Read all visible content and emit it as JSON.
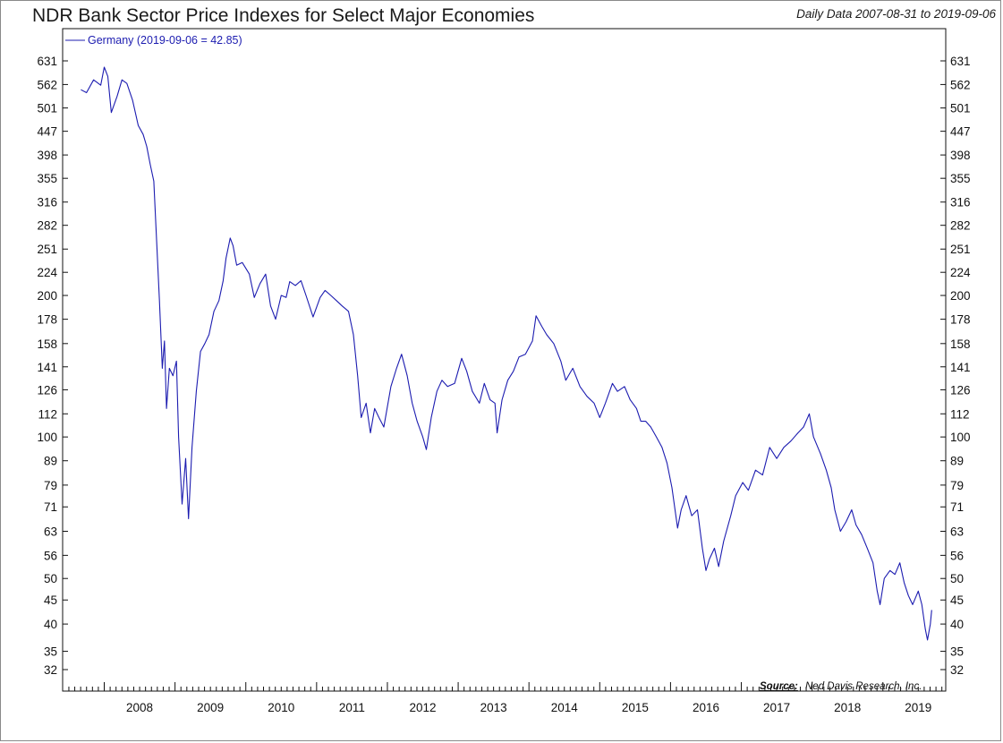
{
  "chart_data": {
    "type": "line",
    "title": "NDR Bank Sector Price Indexes for Select Major Economies",
    "subtitle": "Daily Data 2007-08-31 to 2019-09-06",
    "y_scale": "log",
    "ylim": [
      29.5,
      700
    ],
    "xlim": [
      2007.45,
      2019.85
    ],
    "y_ticks": [
      631,
      562,
      501,
      447,
      398,
      355,
      316,
      282,
      251,
      224,
      200,
      178,
      158,
      141,
      126,
      112,
      100,
      89,
      79,
      71,
      63,
      56,
      50,
      45,
      40,
      35,
      32
    ],
    "x_tick_years": [
      "2008",
      "2009",
      "2010",
      "2011",
      "2012",
      "2013",
      "2014",
      "2015",
      "2016",
      "2017",
      "2018",
      "2019"
    ],
    "legend": {
      "label": "Germany (2019-09-06 = 42.85)",
      "position": "top-left"
    },
    "source": {
      "label": "Source:",
      "text": "Ned Davis Research, Inc."
    },
    "series": [
      {
        "name": "Germany",
        "color": "#1c1cb0",
        "points": [
          [
            2007.67,
            548
          ],
          [
            2007.75,
            540
          ],
          [
            2007.85,
            575
          ],
          [
            2007.95,
            560
          ],
          [
            2008.0,
            612
          ],
          [
            2008.05,
            585
          ],
          [
            2008.1,
            490
          ],
          [
            2008.18,
            530
          ],
          [
            2008.25,
            575
          ],
          [
            2008.32,
            565
          ],
          [
            2008.4,
            520
          ],
          [
            2008.48,
            460
          ],
          [
            2008.55,
            440
          ],
          [
            2008.6,
            415
          ],
          [
            2008.65,
            380
          ],
          [
            2008.7,
            350
          ],
          [
            2008.74,
            260
          ],
          [
            2008.78,
            195
          ],
          [
            2008.82,
            140
          ],
          [
            2008.85,
            160
          ],
          [
            2008.88,
            115
          ],
          [
            2008.92,
            140
          ],
          [
            2008.97,
            135
          ],
          [
            2009.02,
            145
          ],
          [
            2009.05,
            100
          ],
          [
            2009.1,
            72
          ],
          [
            2009.15,
            90
          ],
          [
            2009.19,
            67
          ],
          [
            2009.24,
            95
          ],
          [
            2009.3,
            125
          ],
          [
            2009.36,
            152
          ],
          [
            2009.42,
            158
          ],
          [
            2009.48,
            165
          ],
          [
            2009.55,
            185
          ],
          [
            2009.62,
            195
          ],
          [
            2009.68,
            215
          ],
          [
            2009.72,
            240
          ],
          [
            2009.78,
            265
          ],
          [
            2009.82,
            255
          ],
          [
            2009.87,
            232
          ],
          [
            2009.95,
            235
          ],
          [
            2010.05,
            222
          ],
          [
            2010.12,
            198
          ],
          [
            2010.2,
            212
          ],
          [
            2010.28,
            222
          ],
          [
            2010.35,
            190
          ],
          [
            2010.42,
            178
          ],
          [
            2010.5,
            200
          ],
          [
            2010.57,
            198
          ],
          [
            2010.62,
            214
          ],
          [
            2010.7,
            210
          ],
          [
            2010.78,
            215
          ],
          [
            2010.85,
            200
          ],
          [
            2010.95,
            180
          ],
          [
            2011.05,
            198
          ],
          [
            2011.12,
            205
          ],
          [
            2011.2,
            200
          ],
          [
            2011.28,
            195
          ],
          [
            2011.36,
            190
          ],
          [
            2011.45,
            185
          ],
          [
            2011.52,
            165
          ],
          [
            2011.58,
            135
          ],
          [
            2011.63,
            110
          ],
          [
            2011.7,
            118
          ],
          [
            2011.76,
            102
          ],
          [
            2011.82,
            115
          ],
          [
            2011.88,
            110
          ],
          [
            2011.95,
            105
          ],
          [
            2012.05,
            128
          ],
          [
            2012.13,
            140
          ],
          [
            2012.2,
            150
          ],
          [
            2012.28,
            135
          ],
          [
            2012.35,
            118
          ],
          [
            2012.42,
            108
          ],
          [
            2012.5,
            100
          ],
          [
            2012.55,
            94
          ],
          [
            2012.62,
            110
          ],
          [
            2012.7,
            125
          ],
          [
            2012.77,
            132
          ],
          [
            2012.85,
            128
          ],
          [
            2012.95,
            130
          ],
          [
            2013.05,
            147
          ],
          [
            2013.12,
            138
          ],
          [
            2013.2,
            125
          ],
          [
            2013.3,
            118
          ],
          [
            2013.37,
            130
          ],
          [
            2013.45,
            120
          ],
          [
            2013.52,
            118
          ],
          [
            2013.55,
            102
          ],
          [
            2013.62,
            120
          ],
          [
            2013.7,
            132
          ],
          [
            2013.78,
            138
          ],
          [
            2013.86,
            148
          ],
          [
            2013.95,
            150
          ],
          [
            2014.05,
            160
          ],
          [
            2014.1,
            181
          ],
          [
            2014.18,
            172
          ],
          [
            2014.25,
            165
          ],
          [
            2014.35,
            158
          ],
          [
            2014.45,
            145
          ],
          [
            2014.52,
            132
          ],
          [
            2014.62,
            140
          ],
          [
            2014.72,
            128
          ],
          [
            2014.82,
            122
          ],
          [
            2014.92,
            118
          ],
          [
            2015.0,
            110
          ],
          [
            2015.08,
            118
          ],
          [
            2015.18,
            130
          ],
          [
            2015.25,
            125
          ],
          [
            2015.35,
            128
          ],
          [
            2015.43,
            120
          ],
          [
            2015.52,
            115
          ],
          [
            2015.58,
            108
          ],
          [
            2015.65,
            108
          ],
          [
            2015.72,
            105
          ],
          [
            2015.8,
            100
          ],
          [
            2015.88,
            95
          ],
          [
            2015.95,
            88
          ],
          [
            2016.02,
            78
          ],
          [
            2016.1,
            64
          ],
          [
            2016.15,
            70
          ],
          [
            2016.22,
            75
          ],
          [
            2016.3,
            68
          ],
          [
            2016.38,
            70
          ],
          [
            2016.45,
            58
          ],
          [
            2016.5,
            52
          ],
          [
            2016.55,
            55
          ],
          [
            2016.62,
            58
          ],
          [
            2016.68,
            53
          ],
          [
            2016.75,
            60
          ],
          [
            2016.85,
            68
          ],
          [
            2016.92,
            75
          ],
          [
            2017.02,
            80
          ],
          [
            2017.1,
            77
          ],
          [
            2017.2,
            85
          ],
          [
            2017.3,
            83
          ],
          [
            2017.4,
            95
          ],
          [
            2017.5,
            90
          ],
          [
            2017.6,
            95
          ],
          [
            2017.7,
            98
          ],
          [
            2017.8,
            102
          ],
          [
            2017.88,
            105
          ],
          [
            2017.96,
            112
          ],
          [
            2018.02,
            100
          ],
          [
            2018.12,
            92
          ],
          [
            2018.2,
            85
          ],
          [
            2018.27,
            78
          ],
          [
            2018.32,
            70
          ],
          [
            2018.4,
            63
          ],
          [
            2018.48,
            66
          ],
          [
            2018.56,
            70
          ],
          [
            2018.62,
            65
          ],
          [
            2018.7,
            62
          ],
          [
            2018.78,
            58
          ],
          [
            2018.86,
            54
          ],
          [
            2018.92,
            47
          ],
          [
            2018.96,
            44
          ],
          [
            2019.02,
            50
          ],
          [
            2019.1,
            52
          ],
          [
            2019.17,
            51
          ],
          [
            2019.24,
            54
          ],
          [
            2019.3,
            49
          ],
          [
            2019.36,
            46
          ],
          [
            2019.42,
            44
          ],
          [
            2019.5,
            47
          ],
          [
            2019.55,
            44
          ],
          [
            2019.6,
            39
          ],
          [
            2019.63,
            37
          ],
          [
            2019.67,
            40
          ],
          [
            2019.69,
            42.85
          ]
        ]
      }
    ]
  }
}
